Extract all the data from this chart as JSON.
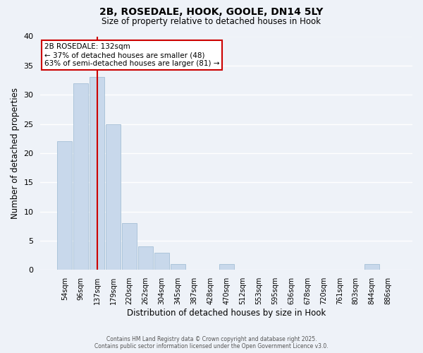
{
  "title": "2B, ROSEDALE, HOOK, GOOLE, DN14 5LY",
  "subtitle": "Size of property relative to detached houses in Hook",
  "xlabel": "Distribution of detached houses by size in Hook",
  "ylabel": "Number of detached properties",
  "bar_labels": [
    "54sqm",
    "96sqm",
    "137sqm",
    "179sqm",
    "220sqm",
    "262sqm",
    "304sqm",
    "345sqm",
    "387sqm",
    "428sqm",
    "470sqm",
    "512sqm",
    "553sqm",
    "595sqm",
    "636sqm",
    "678sqm",
    "720sqm",
    "761sqm",
    "803sqm",
    "844sqm",
    "886sqm"
  ],
  "bar_values": [
    22,
    32,
    33,
    25,
    8,
    4,
    3,
    1,
    0,
    0,
    1,
    0,
    0,
    0,
    0,
    0,
    0,
    0,
    0,
    1,
    0
  ],
  "bar_color": "#c8d8eb",
  "bar_edge_color": "#9ab8d0",
  "vline_bar_index": 2,
  "vline_color": "#cc0000",
  "ylim": [
    0,
    40
  ],
  "yticks": [
    0,
    5,
    10,
    15,
    20,
    25,
    30,
    35,
    40
  ],
  "annotation_title": "2B ROSEDALE: 132sqm",
  "annotation_line1": "← 37% of detached houses are smaller (48)",
  "annotation_line2": "63% of semi-detached houses are larger (81) →",
  "annotation_box_color": "#ffffff",
  "annotation_box_edge": "#cc0000",
  "bg_color": "#eef2f8",
  "grid_color": "#ffffff",
  "title_fontsize": 10,
  "subtitle_fontsize": 8.5,
  "footer_line1": "Contains HM Land Registry data © Crown copyright and database right 2025.",
  "footer_line2": "Contains public sector information licensed under the Open Government Licence v3.0."
}
